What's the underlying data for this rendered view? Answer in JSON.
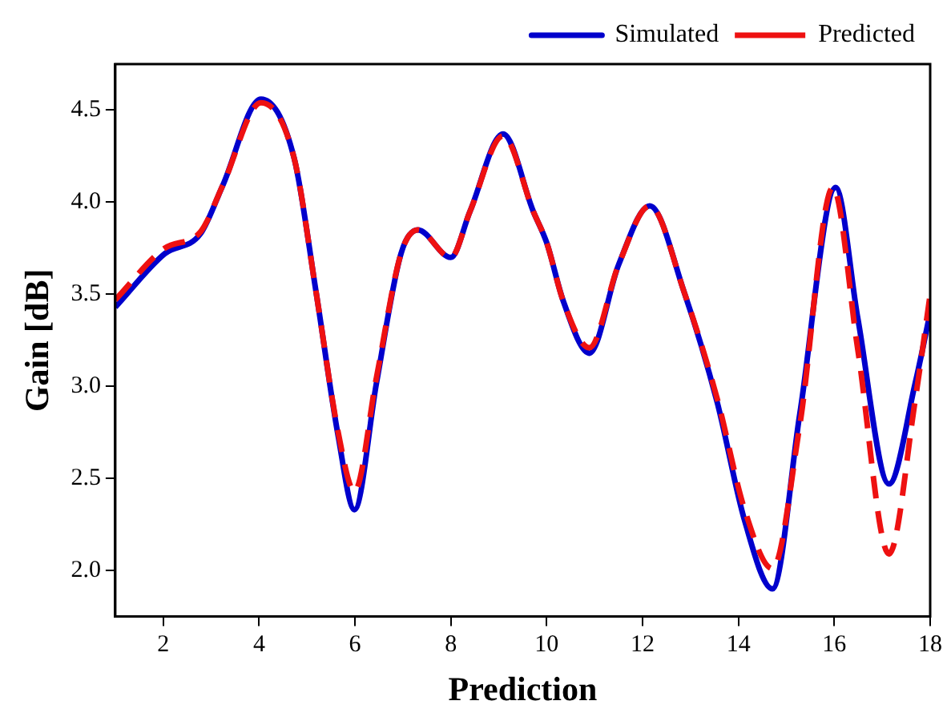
{
  "chart_data": {
    "type": "line",
    "xlabel": "Prediction",
    "ylabel": "Gain [dB]",
    "xlim": [
      1,
      18
    ],
    "xticks": [
      2,
      4,
      6,
      8,
      10,
      12,
      14,
      16,
      18
    ],
    "ylim": [
      1.75,
      4.75
    ],
    "yticks": [
      {
        "value": 2,
        "label": "2.0"
      },
      2.5,
      {
        "value": 3,
        "label": "3.0"
      },
      3.5,
      {
        "value": 4,
        "label": "4.0"
      },
      4.5
    ],
    "grid": false,
    "legend": "top right",
    "marker": "none",
    "series": [
      {
        "name": "Simulated",
        "color": "#0000cc",
        "line_style": "solid",
        "x": [
          1,
          2.03,
          2.78,
          3.24,
          4.04,
          4.73,
          5.19,
          5.65,
          5.99,
          6.45,
          6.96,
          7.31,
          8.0,
          8.4,
          9.09,
          9.72,
          10.0,
          10.35,
          10.89,
          11.5,
          12.15,
          12.87,
          13.56,
          14.13,
          14.71,
          15.28,
          16.03,
          16.49,
          17.14,
          17.69,
          18
        ],
        "values": [
          3.43,
          3.72,
          3.83,
          4.09,
          4.56,
          4.24,
          3.51,
          2.73,
          2.33,
          3.02,
          3.72,
          3.85,
          3.7,
          3.95,
          4.37,
          3.95,
          3.78,
          3.46,
          3.18,
          3.66,
          3.98,
          3.51,
          2.91,
          2.27,
          1.9,
          2.85,
          4.08,
          3.37,
          2.47,
          3.02,
          3.4
        ]
      },
      {
        "name": "Predicted",
        "color": "#ee1111",
        "line_style": "dashed",
        "x": [
          1,
          2.03,
          2.78,
          3.24,
          4.04,
          4.73,
          5.19,
          5.65,
          5.99,
          6.45,
          6.96,
          7.31,
          8.0,
          8.4,
          9.09,
          9.72,
          10.0,
          10.35,
          10.89,
          11.5,
          12.15,
          12.87,
          13.56,
          14.13,
          14.71,
          15.28,
          15.97,
          16.49,
          17.14,
          17.69,
          18
        ],
        "values": [
          3.47,
          3.75,
          3.84,
          4.09,
          4.54,
          4.24,
          3.51,
          2.75,
          2.43,
          3.05,
          3.72,
          3.85,
          3.7,
          3.95,
          4.36,
          3.95,
          3.78,
          3.46,
          3.21,
          3.66,
          3.98,
          3.51,
          2.93,
          2.33,
          2.01,
          2.79,
          4.08,
          3.2,
          2.09,
          2.93,
          3.5
        ]
      }
    ]
  }
}
